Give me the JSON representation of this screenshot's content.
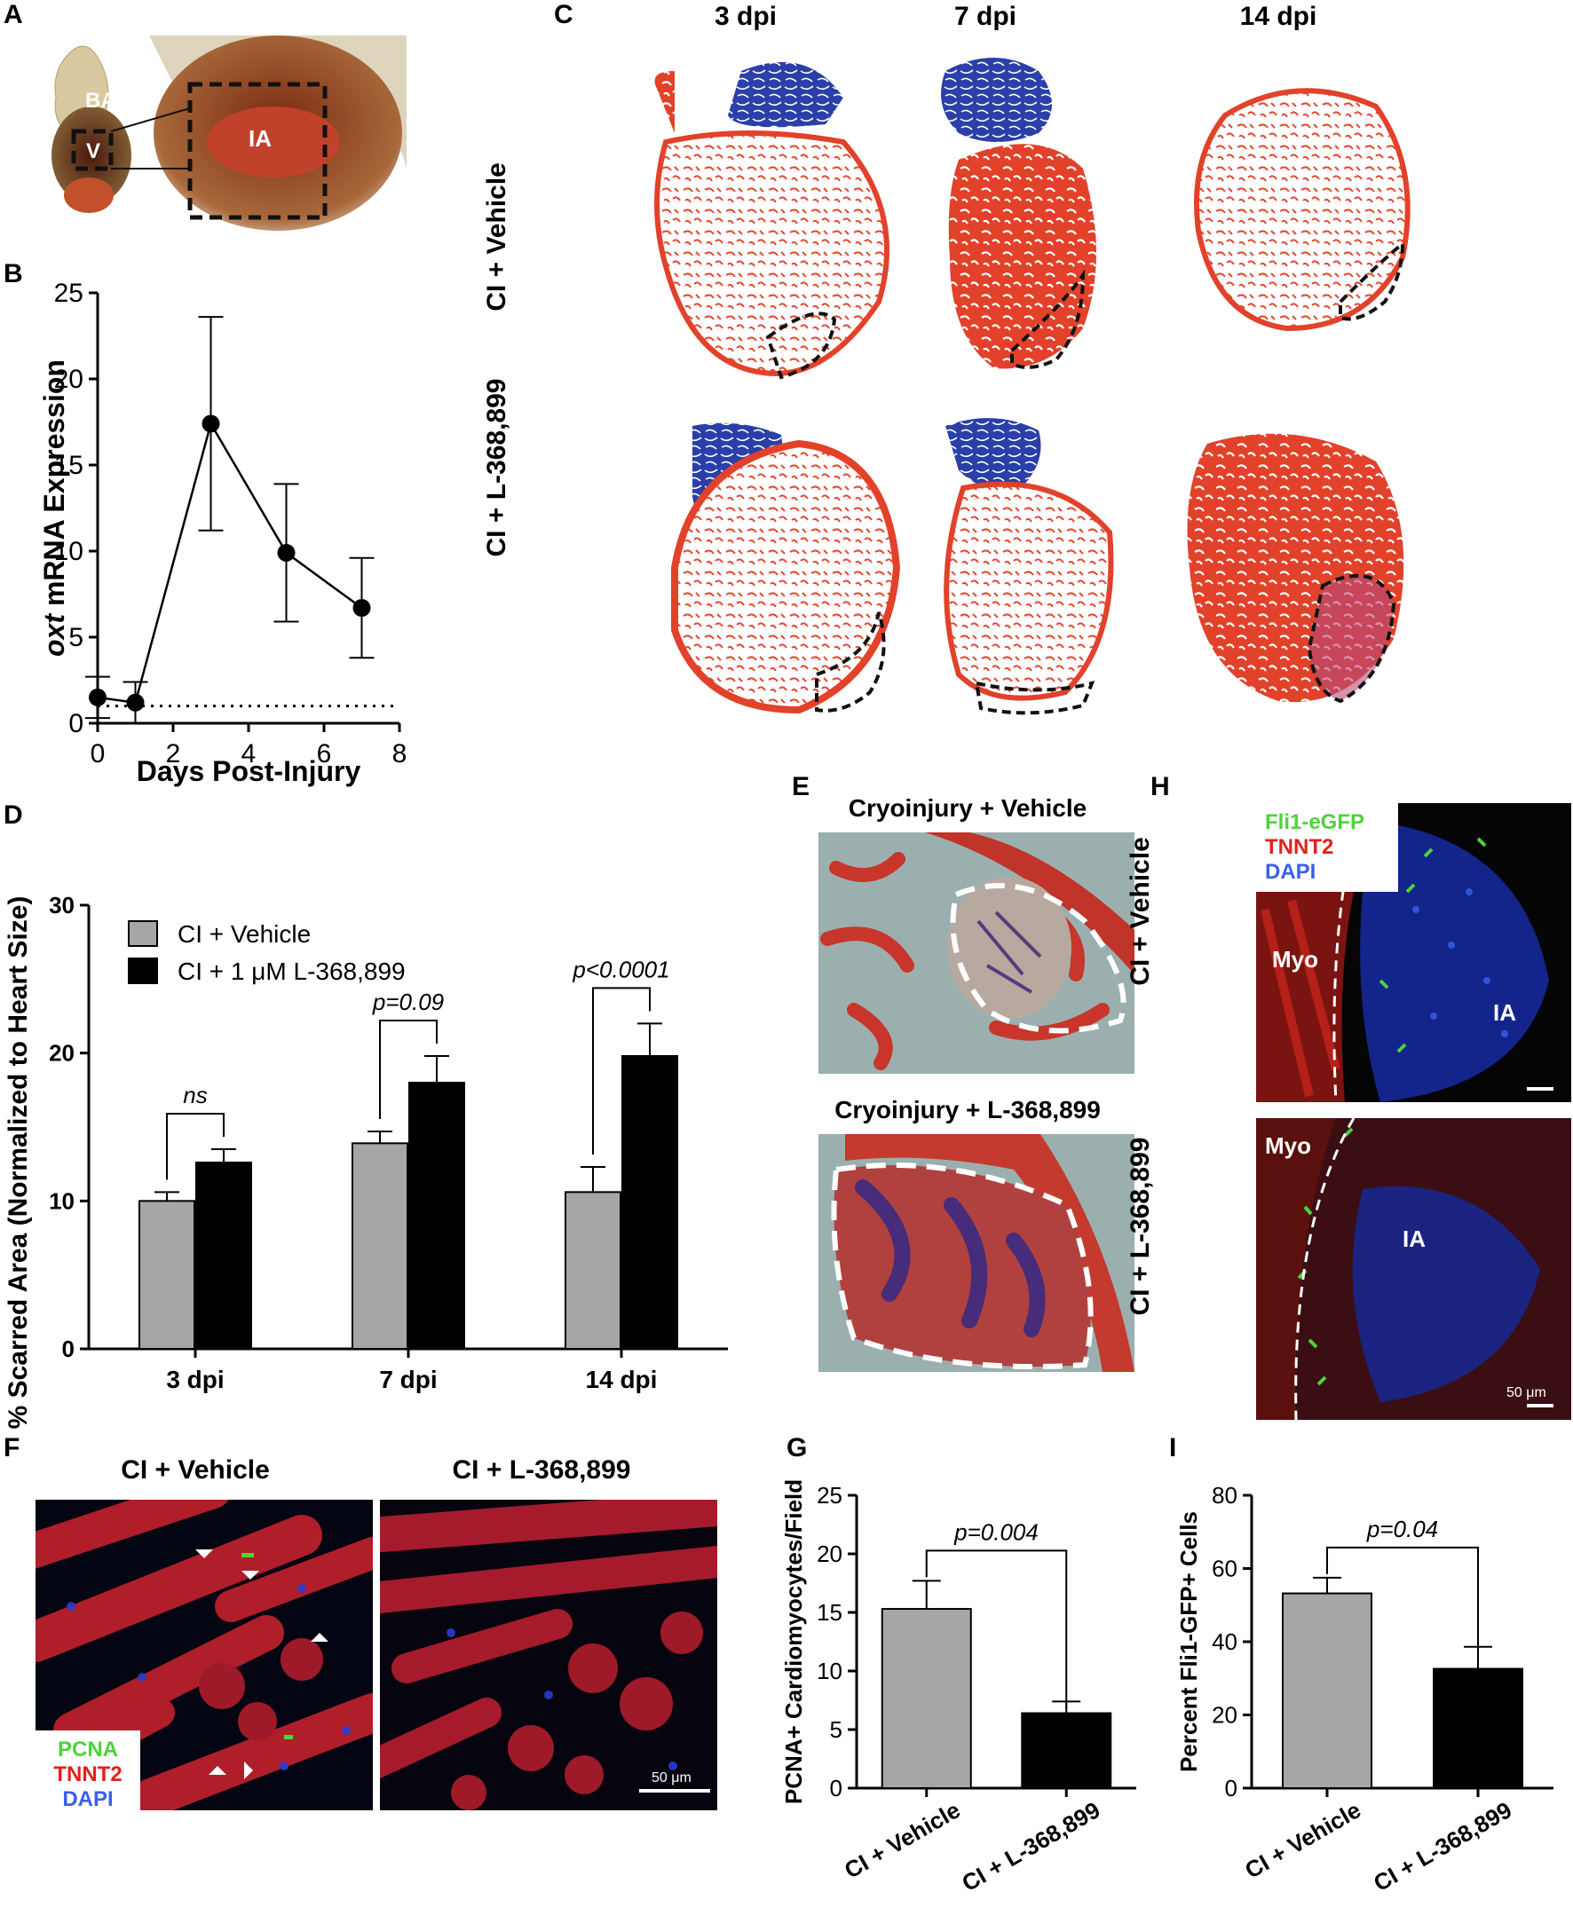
{
  "panels": {
    "A": "A",
    "B": "B",
    "C": "C",
    "D": "D",
    "E": "E",
    "F": "F",
    "G": "G",
    "H": "H",
    "I": "I"
  },
  "panel_a": {
    "labels": [
      "BA",
      "V",
      "IA"
    ]
  },
  "panel_c": {
    "columns": [
      "3 dpi",
      "7 dpi",
      "14 dpi"
    ],
    "rows": [
      "CI + Vehicle",
      "CI + L-368,899"
    ]
  },
  "panel_e": {
    "captions": [
      "Cryoinjury + Vehicle",
      "Cryoinjury + L-368,899"
    ]
  },
  "panel_f": {
    "captions": [
      "CI + Vehicle",
      "CI + L-368,899"
    ],
    "stain_labels": [
      "PCNA",
      "TNNT2",
      "DAPI"
    ],
    "scale_bar": "50 μm"
  },
  "panel_h": {
    "stain_labels": [
      "Fli1-eGFP",
      "TNNT2",
      "DAPI"
    ],
    "rows": [
      "CI + Vehicle",
      "CI + L-368,899"
    ],
    "region_labels": [
      "Myo",
      "IA"
    ],
    "scale_bar": "50 μm"
  },
  "colors": {
    "gray_bar": "#a6a6a6",
    "black_bar": "#000000",
    "tissue_red": "#d93a26",
    "stain_blue": "#1f3f9e",
    "gfp_green": "#4cd43a",
    "tnnt2_red": "#e0211b",
    "dapi_blue": "#3a5ff0"
  },
  "chart_data": [
    {
      "id": "B",
      "type": "line",
      "xlabel": "Days Post-Injury",
      "ylabel_italic": "oxt",
      "ylabel_rest": " mRNA Expression",
      "xlim": [
        0,
        8
      ],
      "ylim": [
        0,
        25
      ],
      "xticks": [
        0,
        2,
        4,
        6,
        8
      ],
      "yticks": [
        0,
        5,
        10,
        15,
        20,
        25
      ],
      "x": [
        0,
        1,
        3,
        5,
        7
      ],
      "y": [
        1.5,
        1.2,
        17.4,
        9.9,
        6.7
      ],
      "err": [
        1.2,
        1.2,
        6.2,
        4.0,
        2.9
      ],
      "reference_line": 1
    },
    {
      "id": "D",
      "type": "bar",
      "ylabel": "% Scarred Area (Normalized to Heart Size)",
      "categories": [
        "3 dpi",
        "7 dpi",
        "14 dpi"
      ],
      "ylim": [
        0,
        30
      ],
      "yticks": [
        0,
        10,
        20,
        30
      ],
      "series": [
        {
          "name": "CI + Vehicle",
          "values": [
            10.0,
            13.9,
            10.6
          ],
          "err": [
            0.6,
            0.8,
            1.7
          ]
        },
        {
          "name": "CI + 1 μM L-368,899",
          "values": [
            12.6,
            18.0,
            19.8
          ],
          "err": [
            0.9,
            1.8,
            2.2
          ]
        }
      ],
      "annotations": [
        "ns",
        "p=0.09",
        "p<0.0001"
      ]
    },
    {
      "id": "G",
      "type": "bar",
      "ylabel": "PCNA+ Cardiomyocytes/Field",
      "categories": [
        "CI + Vehicle",
        "CI + L-368,899"
      ],
      "ylim": [
        0,
        25
      ],
      "yticks": [
        0,
        5,
        10,
        15,
        20,
        25
      ],
      "values": [
        15.3,
        6.4
      ],
      "err": [
        2.4,
        1.0
      ],
      "annotation": "p=0.004"
    },
    {
      "id": "I",
      "type": "bar",
      "ylabel": "Percent Fli1-GFP+ Cells",
      "categories": [
        "CI + Vehicle",
        "CI + L-368,899"
      ],
      "ylim": [
        0,
        80
      ],
      "yticks": [
        0,
        20,
        40,
        60,
        80
      ],
      "values": [
        53.2,
        32.6
      ],
      "err": [
        4.3,
        6.0
      ],
      "annotation": "p=0.04"
    }
  ]
}
